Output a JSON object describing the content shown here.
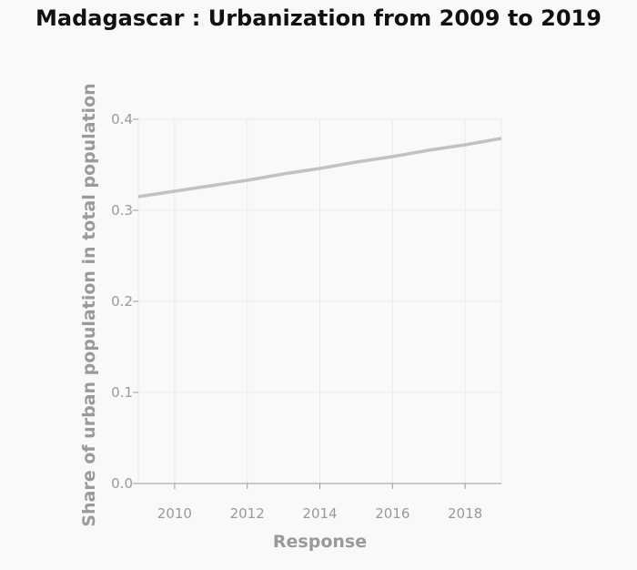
{
  "chart_data": {
    "type": "line",
    "title": "Madagascar : Urbanization from 2009 to 2019",
    "xlabel": "Response",
    "ylabel": "Share of urban population in total population",
    "xlim": [
      2009,
      2019
    ],
    "ylim": [
      0,
      0.4
    ],
    "x_ticks": [
      "2010",
      "2012",
      "2014",
      "2016",
      "2018"
    ],
    "y_ticks": [
      "0.0",
      "0.1",
      "0.2",
      "0.3",
      "0.4"
    ],
    "grid": true,
    "legend": "none",
    "series": [
      {
        "x": [
          2009,
          2010,
          2011,
          2012,
          2013,
          2014,
          2015,
          2016,
          2017,
          2018,
          2019
        ],
        "values": [
          0.315,
          0.321,
          0.327,
          0.333,
          0.34,
          0.346,
          0.353,
          0.359,
          0.366,
          0.372,
          0.379
        ],
        "color": "#c2c2c2"
      }
    ],
    "colors": {
      "background": "#f9f9f9",
      "grid": "#ebebeb",
      "axis": "#9a9a9a",
      "line": "#c2c2c2",
      "title": "#111111"
    }
  }
}
